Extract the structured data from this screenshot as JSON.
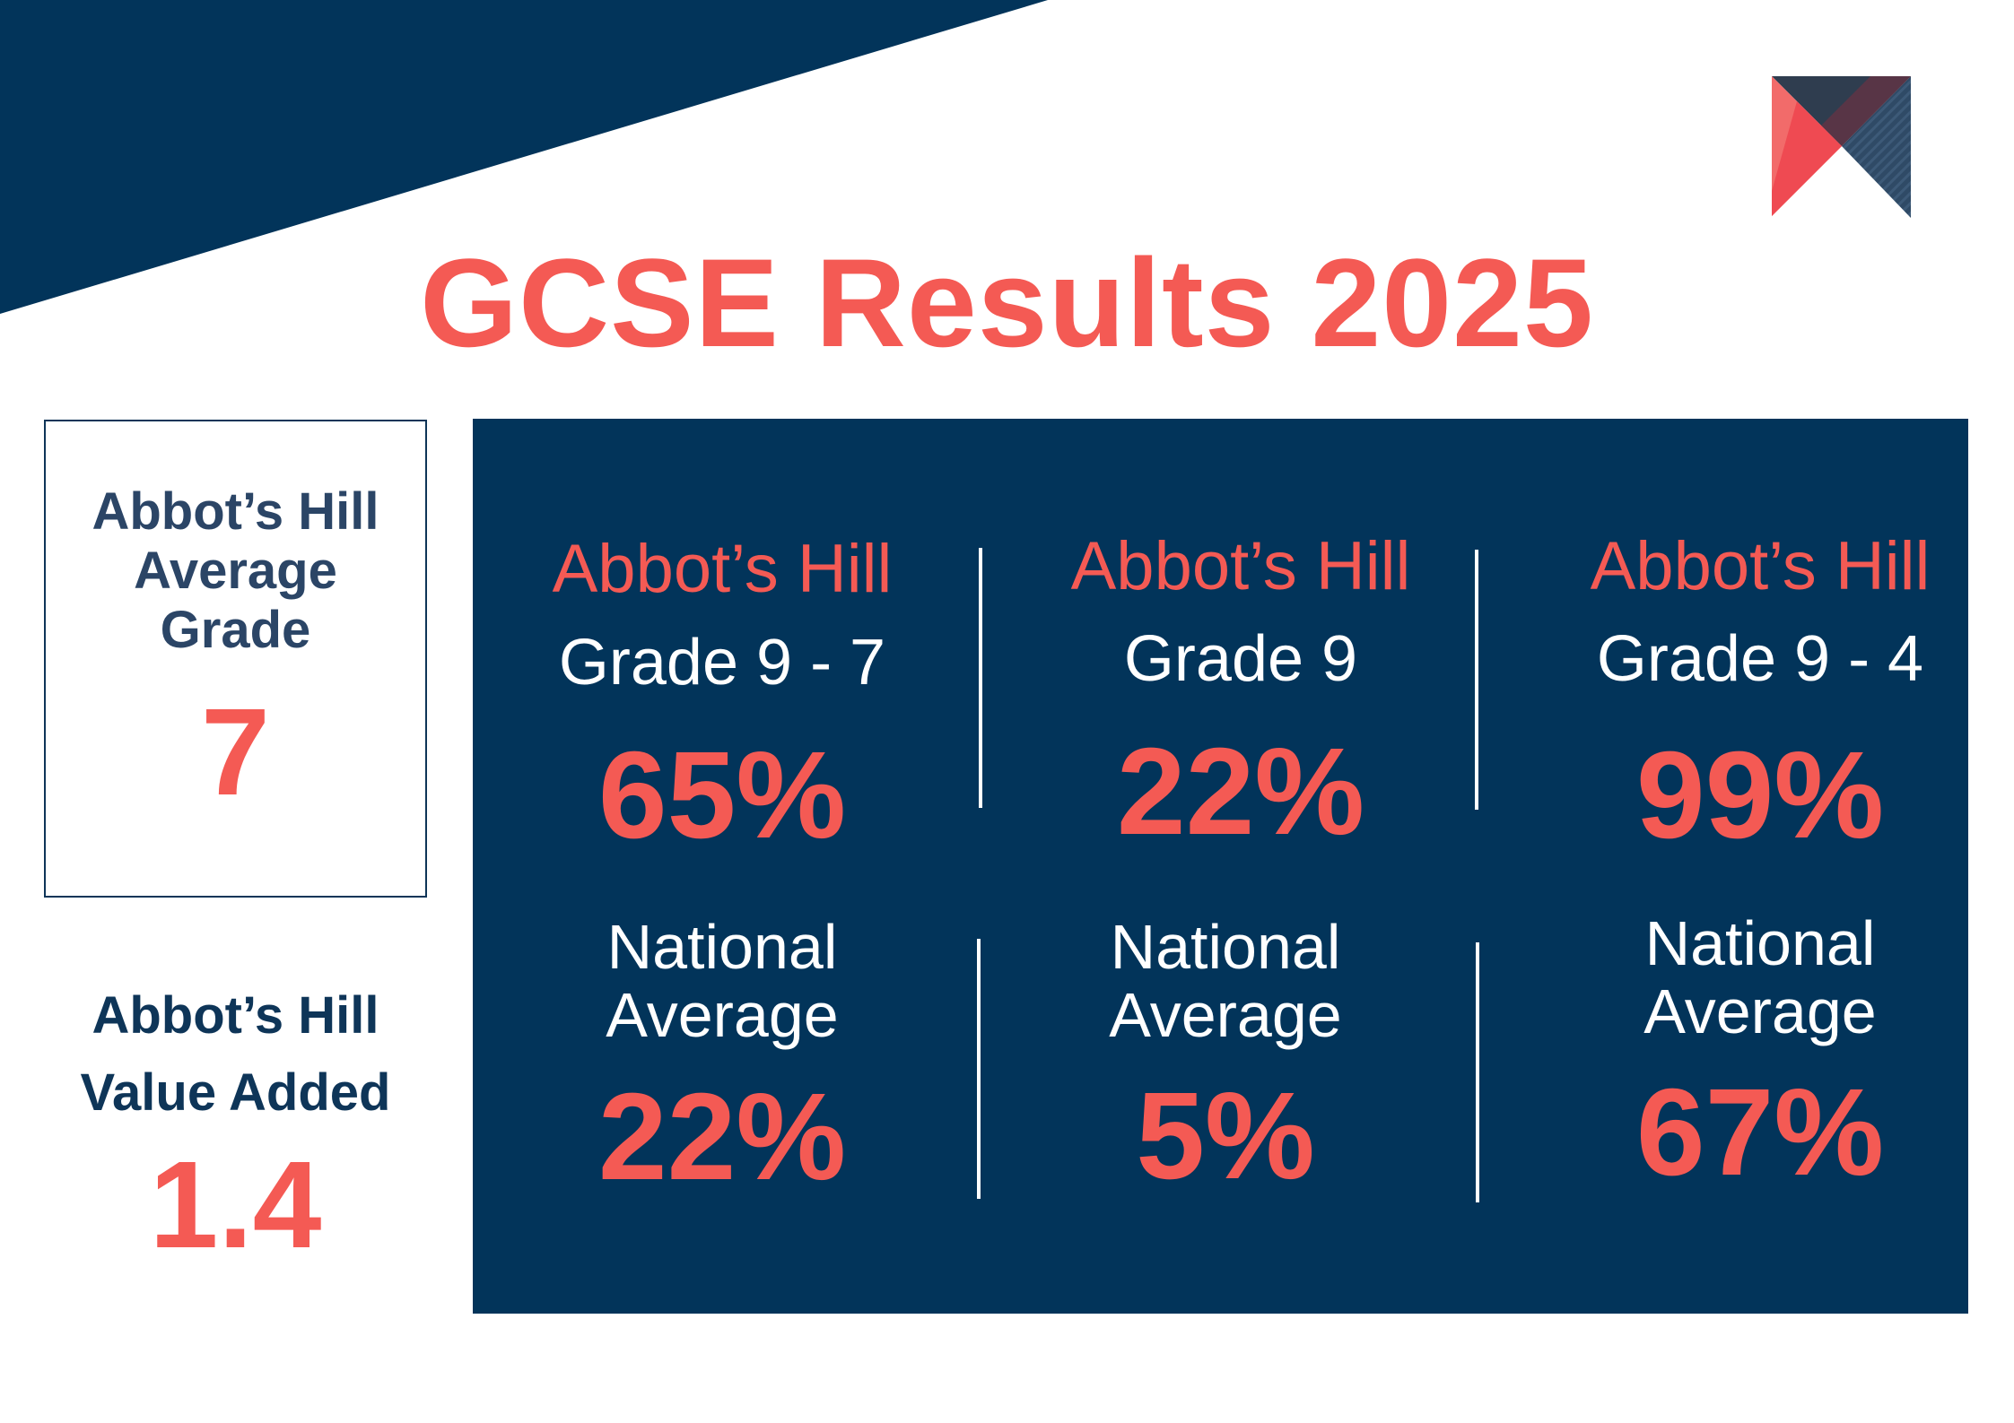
{
  "colors": {
    "navy": "#02345a",
    "coral": "#f45a54",
    "white": "#ffffff"
  },
  "logo": {
    "icon": "angled-chevron-logo"
  },
  "title": "GCSE Results 2025",
  "average_grade": {
    "label": "Abbot’s Hill Average Grade",
    "value": "7"
  },
  "value_added": {
    "label": "Abbot’s Hill Value Added",
    "value": "1.4"
  },
  "results": [
    {
      "school": "Abbot’s Hill",
      "grade_band": "Grade 9 - 7",
      "school_pct": "65%",
      "national_label": "National Average",
      "national_pct": "22%"
    },
    {
      "school": "Abbot’s Hill",
      "grade_band": "Grade 9",
      "school_pct": "22%",
      "national_label": "National Average",
      "national_pct": "5%"
    },
    {
      "school": "Abbot’s Hill",
      "grade_band": "Grade 9 - 4",
      "school_pct": "99%",
      "national_label": "National Average",
      "national_pct": "67%"
    }
  ]
}
